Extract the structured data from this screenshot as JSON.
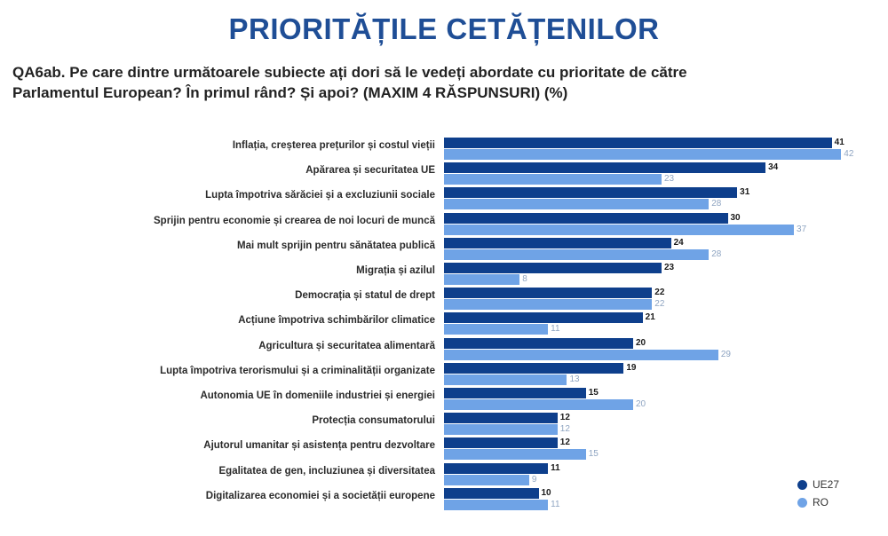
{
  "header": {
    "title": "PRIORITĂȚILE CETĂȚENILOR",
    "question_line1": "QA6ab. Pe care dintre următoarele subiecte ați dori să le vedeți abordate cu prioritate de către",
    "question_line2": "Parlamentul European? În primul rând?  Și apoi? (MAXIM 4 RĂSPUNSURI) (%)"
  },
  "legend": {
    "items": [
      {
        "label": "UE27",
        "color": "#0e3f8c"
      },
      {
        "label": "RO",
        "color": "#6fa3e6"
      }
    ]
  },
  "chart_data": {
    "type": "bar",
    "orientation": "horizontal",
    "title": "PRIORITĂȚILE CETĂȚENILOR",
    "subtitle": "QA6ab. Pe care dintre următoarele subiecte ați dori să le vedeți abordate cu prioritate de către Parlamentul European? În primul rând?  Și apoi? (MAXIM 4 RĂSPUNSURI) (%)",
    "xlabel": "",
    "ylabel": "",
    "grid": false,
    "legend_position": "bottom-right",
    "categories": [
      "Inflația, creșterea prețurilor și costul vieții",
      "Apărarea și securitatea UE",
      "Lupta împotriva sărăciei și a excluziunii sociale",
      "Sprijin pentru economie și crearea de noi locuri de muncă",
      "Mai mult sprijin pentru sănătatea publică",
      "Migrația și azilul",
      "Democrația și statul de drept",
      "Acțiune împotriva schimbărilor climatice",
      "Agricultura și securitatea alimentară",
      "Lupta împotriva terorismului și a criminalității organizate",
      "Autonomia UE în domeniile industriei și energiei",
      "Protecția consumatorului",
      "Ajutorul umanitar și asistența pentru dezvoltare",
      "Egalitatea de gen, incluziunea și diversitatea",
      "Digitalizarea economiei și a societății europene"
    ],
    "series": [
      {
        "name": "UE27",
        "color": "#0e3f8c",
        "values": [
          41,
          34,
          31,
          30,
          24,
          23,
          22,
          21,
          20,
          19,
          15,
          12,
          12,
          11,
          10
        ]
      },
      {
        "name": "RO",
        "color": "#6fa3e6",
        "values": [
          42,
          23,
          28,
          37,
          28,
          8,
          22,
          11,
          29,
          13,
          20,
          12,
          15,
          9,
          11
        ]
      }
    ],
    "xlim": [
      0,
      45
    ]
  }
}
